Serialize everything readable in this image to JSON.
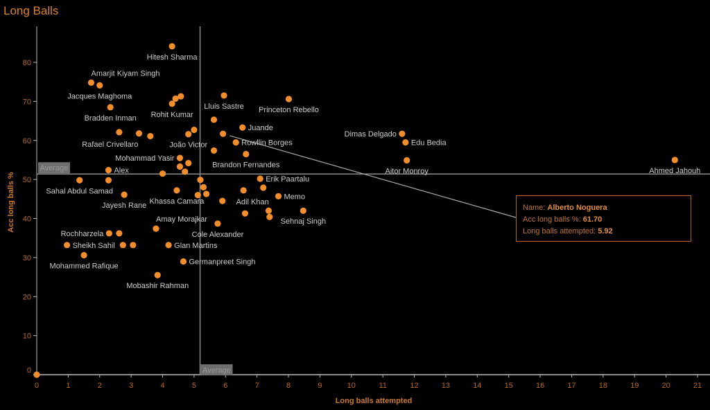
{
  "page": {
    "title": "Long Balls"
  },
  "tooltip": {
    "name_label": "Name:",
    "name_value": "Alberto Noguera",
    "y_label": "Acc long balls %:",
    "y_value": "61.70",
    "x_label": "Long balls attempted:",
    "x_value": "5.92"
  },
  "colors": {
    "point": "#f28e2b",
    "accent": "#d9822b",
    "label": "#cdcdcd",
    "reference_line": "#8c8c8c",
    "background": "#000000"
  },
  "chart_data": {
    "type": "scatter",
    "title": "Long Balls",
    "xlabel": "Long balls attempted",
    "ylabel": "Acc long balls %",
    "xlim": [
      0,
      21.4
    ],
    "ylim": [
      0,
      89
    ],
    "x_ticks": [
      0,
      1,
      2,
      3,
      4,
      5,
      6,
      7,
      8,
      9,
      10,
      11,
      12,
      13,
      14,
      15,
      16,
      17,
      18,
      19,
      20,
      21
    ],
    "y_ticks": [
      0,
      10,
      20,
      30,
      40,
      50,
      60,
      70,
      80
    ],
    "grid": false,
    "legend": "none",
    "reference_lines": [
      {
        "axis": "y",
        "value": 51.4,
        "label": "Average"
      },
      {
        "axis": "x",
        "value": 5.19,
        "label": "Average"
      }
    ],
    "highlighted": "Alberto Noguera",
    "points": [
      {
        "name": "Hitesh Sharma",
        "x": 4.3,
        "y": 84.1,
        "label_pos": "below"
      },
      {
        "name": "Amarjit Kiyam Singh",
        "x": 1.73,
        "y": 74.8,
        "label_pos": "above-right"
      },
      {
        "name": "Jacques Maghoma",
        "x": 2.0,
        "y": 74.1,
        "label_pos": "below"
      },
      {
        "name": "Bradden Inman",
        "x": 2.34,
        "y": 68.5,
        "label_pos": "below"
      },
      {
        "name": "Rohit Kumar",
        "x": 4.3,
        "y": 69.4,
        "label_pos": "below"
      },
      {
        "name": "Lluis Sastre",
        "x": 5.95,
        "y": 71.5,
        "label_pos": "below"
      },
      {
        "name": "Princeton Rebello",
        "x": 8.01,
        "y": 70.6,
        "label_pos": "below"
      },
      {
        "name": "Juande",
        "x": 6.54,
        "y": 63.3,
        "label_pos": "right"
      },
      {
        "name": "Rowllin Borges",
        "x": 6.33,
        "y": 59.5,
        "label_pos": "right"
      },
      {
        "name": "Brandon Fernandes",
        "x": 6.65,
        "y": 56.5,
        "label_pos": "below"
      },
      {
        "name": "João Victor",
        "x": 4.82,
        "y": 61.6,
        "label_pos": "below"
      },
      {
        "name": "Rafael Crivellaro",
        "x": 2.62,
        "y": 62.1,
        "label_pos": "below-left"
      },
      {
        "name": "Mohammad Yasir",
        "x": 4.55,
        "y": 55.5,
        "label_pos": "left"
      },
      {
        "name": "Alex",
        "x": 2.28,
        "y": 52.4,
        "label_pos": "right"
      },
      {
        "name": "Sahal Abdul Samad",
        "x": 1.36,
        "y": 49.8,
        "label_pos": "below"
      },
      {
        "name": "Jayesh Rane",
        "x": 2.78,
        "y": 46.1,
        "label_pos": "below"
      },
      {
        "name": "Khassa Camara",
        "x": 4.45,
        "y": 47.2,
        "label_pos": "below"
      },
      {
        "name": "Amay Morajkar",
        "x": 3.79,
        "y": 37.4,
        "label_pos": "above-right"
      },
      {
        "name": "Cole Alexander",
        "x": 5.75,
        "y": 38.7,
        "label_pos": "below"
      },
      {
        "name": "Erik Paartalu",
        "x": 7.1,
        "y": 50.2,
        "label_pos": "right"
      },
      {
        "name": "Adil Khan",
        "x": 6.57,
        "y": 47.2,
        "label_pos": "below-right"
      },
      {
        "name": "Memo",
        "x": 7.68,
        "y": 45.7,
        "label_pos": "right"
      },
      {
        "name": "Sehnaj Singh",
        "x": 8.47,
        "y": 42.0,
        "label_pos": "below"
      },
      {
        "name": "Rochharzela",
        "x": 2.3,
        "y": 36.2,
        "label_pos": "left"
      },
      {
        "name": "Sheikh Sahil",
        "x": 0.96,
        "y": 33.2,
        "label_pos": "right"
      },
      {
        "name": "Mohammed Rafique",
        "x": 1.5,
        "y": 30.6,
        "label_pos": "below"
      },
      {
        "name": "Glan Martins",
        "x": 4.19,
        "y": 33.2,
        "label_pos": "right"
      },
      {
        "name": "Germanpreet Singh",
        "x": 4.66,
        "y": 29.0,
        "label_pos": "right"
      },
      {
        "name": "Mobashir Rahman",
        "x": 3.84,
        "y": 25.5,
        "label_pos": "below"
      },
      {
        "name": "Dimas Delgado",
        "x": 11.61,
        "y": 61.7,
        "label_pos": "left"
      },
      {
        "name": "Edu Bedia",
        "x": 11.72,
        "y": 59.5,
        "label_pos": "right"
      },
      {
        "name": "Aitor Monroy",
        "x": 11.76,
        "y": 54.9,
        "label_pos": "below"
      },
      {
        "name": "Ahmed Jahouh",
        "x": 20.28,
        "y": 55.0,
        "label_pos": "below"
      },
      {
        "name": "Alberto Noguera",
        "x": 5.92,
        "y": 61.7,
        "label_pos": "none"
      },
      {
        "name": "",
        "x": 4.41,
        "y": 70.7,
        "label_pos": "none"
      },
      {
        "name": "",
        "x": 4.58,
        "y": 71.3,
        "label_pos": "none"
      },
      {
        "name": "",
        "x": 3.25,
        "y": 61.8,
        "label_pos": "none"
      },
      {
        "name": "",
        "x": 3.61,
        "y": 61.1,
        "label_pos": "none"
      },
      {
        "name": "",
        "x": 5.0,
        "y": 62.7,
        "label_pos": "none"
      },
      {
        "name": "",
        "x": 5.63,
        "y": 65.3,
        "label_pos": "none"
      },
      {
        "name": "",
        "x": 5.63,
        "y": 57.4,
        "label_pos": "none"
      },
      {
        "name": "",
        "x": 4.82,
        "y": 54.2,
        "label_pos": "none"
      },
      {
        "name": "",
        "x": 4.55,
        "y": 53.3,
        "label_pos": "none"
      },
      {
        "name": "",
        "x": 4.71,
        "y": 52.0,
        "label_pos": "none"
      },
      {
        "name": "",
        "x": 4.0,
        "y": 51.5,
        "label_pos": "none"
      },
      {
        "name": "",
        "x": 2.28,
        "y": 49.8,
        "label_pos": "none"
      },
      {
        "name": "",
        "x": 5.2,
        "y": 49.9,
        "label_pos": "none"
      },
      {
        "name": "",
        "x": 5.3,
        "y": 48.0,
        "label_pos": "none"
      },
      {
        "name": "",
        "x": 5.12,
        "y": 46.0,
        "label_pos": "none"
      },
      {
        "name": "",
        "x": 5.39,
        "y": 46.3,
        "label_pos": "none"
      },
      {
        "name": "",
        "x": 5.9,
        "y": 44.5,
        "label_pos": "none"
      },
      {
        "name": "",
        "x": 7.2,
        "y": 47.9,
        "label_pos": "none"
      },
      {
        "name": "",
        "x": 7.37,
        "y": 42.0,
        "label_pos": "none"
      },
      {
        "name": "",
        "x": 7.4,
        "y": 40.4,
        "label_pos": "none"
      },
      {
        "name": "",
        "x": 6.62,
        "y": 41.3,
        "label_pos": "none"
      },
      {
        "name": "",
        "x": 2.62,
        "y": 36.2,
        "label_pos": "none"
      },
      {
        "name": "",
        "x": 2.74,
        "y": 33.2,
        "label_pos": "none"
      },
      {
        "name": "",
        "x": 3.06,
        "y": 33.2,
        "label_pos": "none"
      },
      {
        "name": "",
        "x": 0.0,
        "y": 0.0,
        "label_pos": "none"
      }
    ]
  }
}
